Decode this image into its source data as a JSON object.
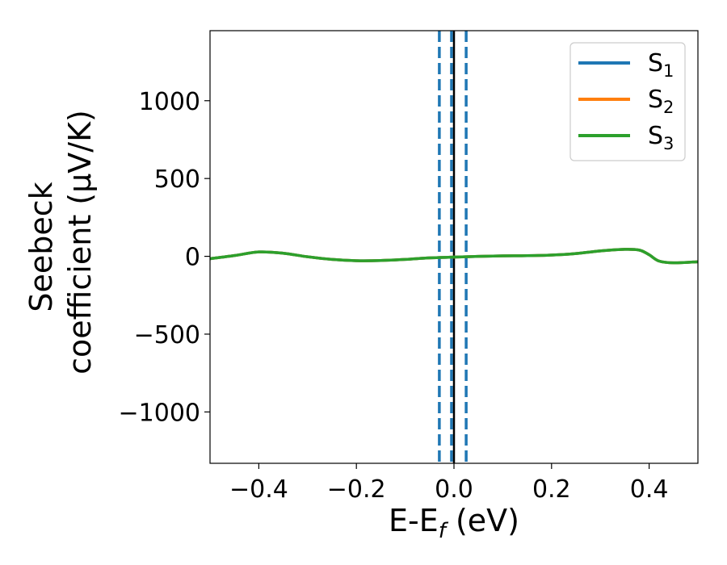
{
  "chart_data": {
    "type": "line",
    "title": "",
    "xlabel": "E-E",
    "xlabel_sub": "f",
    "xlabel_unit": " (eV)",
    "ylabel_line1": "Seebeck",
    "ylabel_line2": "coefficient  (μV/K)",
    "xlim": [
      -0.5,
      0.5
    ],
    "ylim": [
      -1330,
      1450
    ],
    "xticks": [
      -0.4,
      -0.2,
      0.0,
      0.2,
      0.4
    ],
    "xtick_labels": [
      "−0.4",
      "−0.2",
      "0.0",
      "0.2",
      "0.4"
    ],
    "yticks": [
      -1000,
      -500,
      0,
      500,
      1000
    ],
    "ytick_labels": [
      "−1000",
      "−500",
      "0",
      "500",
      "1000"
    ],
    "grid": false,
    "legend_position": "top-right",
    "x": [
      -0.5,
      -0.45,
      -0.4,
      -0.35,
      -0.3,
      -0.25,
      -0.2,
      -0.15,
      -0.1,
      -0.05,
      0.0,
      0.05,
      0.1,
      0.15,
      0.2,
      0.25,
      0.3,
      0.35,
      0.38,
      0.4,
      0.42,
      0.45,
      0.5
    ],
    "series": [
      {
        "name": "S",
        "sub": "1",
        "color": "#1f77b4",
        "values": [
          -15,
          5,
          28,
          20,
          -3,
          -20,
          -28,
          -27,
          -20,
          -10,
          -5,
          0,
          3,
          4,
          8,
          18,
          35,
          45,
          40,
          10,
          -30,
          -42,
          -35
        ]
      },
      {
        "name": "S",
        "sub": "2",
        "color": "#ff7f0e",
        "values": [
          -15,
          5,
          28,
          20,
          -3,
          -20,
          -28,
          -27,
          -20,
          -10,
          -5,
          0,
          3,
          4,
          8,
          18,
          35,
          45,
          40,
          10,
          -30,
          -42,
          -35
        ]
      },
      {
        "name": "S",
        "sub": "3",
        "color": "#2ca02c",
        "values": [
          -15,
          5,
          28,
          20,
          -3,
          -20,
          -28,
          -27,
          -20,
          -10,
          -5,
          0,
          3,
          4,
          8,
          18,
          35,
          45,
          40,
          10,
          -30,
          -42,
          -35
        ]
      }
    ],
    "vlines": [
      {
        "x": -0.03,
        "style": "dashed",
        "color": "#1f77b4"
      },
      {
        "x": -0.005,
        "style": "dashed",
        "color": "#1f77b4"
      },
      {
        "x": 0.025,
        "style": "dashed",
        "color": "#1f77b4"
      },
      {
        "x": 0.0,
        "style": "solid",
        "color": "#000000"
      }
    ]
  }
}
